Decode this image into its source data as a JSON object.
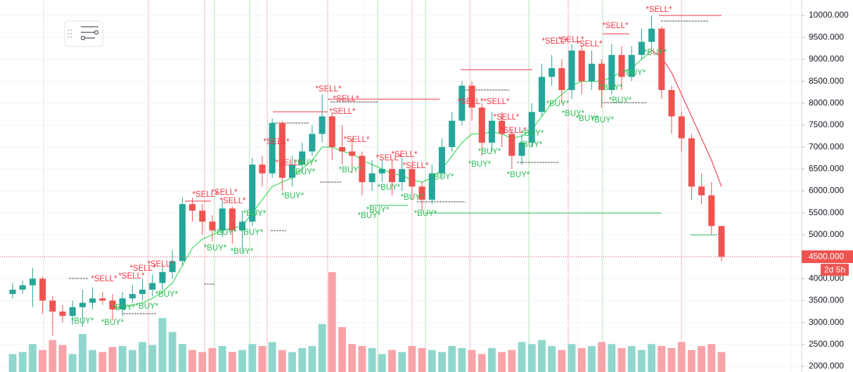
{
  "chart_data": {
    "type": "candlestick",
    "open": [
      3650,
      3750,
      3850,
      4000,
      3500,
      3250,
      3150,
      3350,
      3450,
      3550,
      3500,
      3300,
      3550,
      3650,
      3750,
      3900,
      4150,
      4400,
      5700,
      5550,
      5300,
      5100,
      5600,
      5100,
      5300,
      6600,
      6400,
      7550,
      6300,
      6600,
      6900,
      7300,
      7700,
      7000,
      6900,
      6800,
      6200,
      6400,
      6500,
      6200,
      6500,
      6100,
      5800,
      6400,
      7000,
      7600,
      8400,
      7900,
      7100,
      7600,
      7300,
      6800,
      7100,
      7800,
      8600,
      8800,
      8300,
      9200,
      8500,
      8900,
      8300,
      9100,
      8600,
      9100,
      9400,
      9700,
      8300,
      7700,
      7200,
      6100,
      5900,
      5200
    ],
    "high": [
      3900,
      3950,
      4250,
      4050,
      3600,
      3400,
      3500,
      3750,
      3800,
      3700,
      3650,
      3700,
      3850,
      4000,
      4100,
      4300,
      4650,
      5850,
      5850,
      5700,
      5450,
      5800,
      5650,
      5550,
      6750,
      6800,
      7650,
      7600,
      6800,
      7100,
      7500,
      8200,
      7800,
      7500,
      7200,
      6900,
      6700,
      6700,
      6700,
      6750,
      6600,
      6200,
      6600,
      7200,
      7800,
      8500,
      8500,
      8000,
      7800,
      7800,
      7400,
      7300,
      8000,
      8900,
      9100,
      9000,
      9350,
      9300,
      9200,
      9000,
      9350,
      9300,
      9300,
      9700,
      10000,
      9750,
      8400,
      7800,
      7300,
      6400,
      6200,
      5200
    ],
    "low": [
      3550,
      3650,
      3350,
      3200,
      2700,
      3000,
      2950,
      2900,
      3300,
      3400,
      3050,
      3150,
      3450,
      3500,
      3600,
      3750,
      4000,
      4300,
      5300,
      5000,
      4850,
      4950,
      4800,
      4600,
      5200,
      6100,
      6300,
      6000,
      6100,
      6400,
      6800,
      7100,
      6700,
      6600,
      6400,
      5900,
      6000,
      6200,
      5900,
      6000,
      5800,
      5550,
      5700,
      6300,
      6900,
      7500,
      7600,
      6800,
      6900,
      7000,
      6500,
      6600,
      7000,
      7700,
      8400,
      8000,
      8100,
      8200,
      8300,
      7900,
      8200,
      8300,
      8500,
      9000,
      9200,
      8100,
      7300,
      6900,
      5800,
      5700,
      5000,
      4400
    ],
    "close": [
      3750,
      3850,
      4000,
      3500,
      3250,
      3150,
      3350,
      3450,
      3550,
      3500,
      3300,
      3550,
      3650,
      3750,
      3900,
      4150,
      4400,
      5700,
      5550,
      5300,
      5100,
      5600,
      5100,
      5300,
      6600,
      6400,
      7550,
      6300,
      6600,
      6900,
      7300,
      7700,
      7000,
      6900,
      6800,
      6200,
      6400,
      6500,
      6200,
      6500,
      6100,
      5800,
      6400,
      7000,
      7600,
      8400,
      7900,
      7100,
      7600,
      7300,
      6800,
      7100,
      7800,
      8600,
      8800,
      8300,
      9200,
      8500,
      8900,
      8300,
      9100,
      8600,
      9100,
      9400,
      9700,
      8300,
      7700,
      7200,
      6100,
      5900,
      5200,
      4500
    ],
    "volume": [
      18,
      20,
      28,
      22,
      32,
      27,
      18,
      38,
      22,
      20,
      25,
      26,
      22,
      30,
      27,
      54,
      40,
      28,
      22,
      20,
      24,
      26,
      20,
      22,
      28,
      26,
      30,
      22,
      20,
      24,
      26,
      48,
      100,
      45,
      28,
      26,
      24,
      18,
      22,
      20,
      26,
      24,
      22,
      20,
      26,
      24,
      22,
      18,
      24,
      20,
      22,
      30,
      28,
      32,
      26,
      22,
      28,
      24,
      26,
      30,
      28,
      24,
      26,
      22,
      28,
      26,
      24,
      30,
      22,
      26,
      28,
      20
    ],
    "volume_ylim": [
      0,
      100
    ],
    "up_color": "#26a69a",
    "down_color": "#ef5350",
    "volume_up_color": "#8fd6cc",
    "volume_down_color": "#f7a3a8",
    "ma": [
      {
        "color": "#3ddc5c",
        "values": [
          null,
          null,
          null,
          null,
          null,
          null,
          null,
          null,
          null,
          null,
          3300,
          3350,
          3400,
          3450,
          3550,
          3700,
          3900,
          4300,
          4700,
          4900,
          5000,
          5100,
          5150,
          5200,
          5500,
          5800,
          6100,
          6200,
          6300,
          6500,
          6700,
          7000,
          7000,
          6900,
          6850,
          6700,
          6600,
          6500,
          6400,
          6350,
          6250,
          6200,
          6300,
          6500,
          6800,
          7100,
          7300,
          7300,
          7350,
          7300,
          7200,
          7250,
          7400,
          7700,
          8000,
          8200,
          8400,
          8500,
          8500,
          8500,
          8600,
          8700,
          8800,
          9000,
          9200,
          null,
          null,
          null,
          null,
          null,
          null,
          null
        ]
      },
      {
        "color": "#f0475a",
        "values": [
          null,
          null,
          null,
          null,
          null,
          null,
          null,
          null,
          null,
          null,
          null,
          null,
          null,
          null,
          null,
          null,
          null,
          null,
          null,
          null,
          null,
          null,
          null,
          null,
          null,
          null,
          null,
          null,
          null,
          null,
          null,
          null,
          null,
          null,
          null,
          null,
          null,
          null,
          null,
          null,
          null,
          null,
          null,
          null,
          null,
          null,
          null,
          null,
          null,
          null,
          null,
          null,
          null,
          null,
          null,
          null,
          null,
          null,
          null,
          null,
          null,
          null,
          null,
          null,
          9200,
          9050,
          8700,
          8200,
          7700,
          7200,
          6700,
          6100
        ]
      }
    ],
    "sell_labels": [
      "*SELL*",
      "*SELL*",
      "*SELL*",
      "*SELL*",
      "*SELL*",
      "*SELL*",
      "*SELL*",
      "*SELL*",
      "*SELL*",
      "*SELL*",
      "*SELL*",
      "*SELL*",
      "*SELL*",
      "*SELL*",
      "*SELL*",
      "*SELL*",
      "*SELL*",
      "*SELL*",
      "*SELL*",
      "*SELL*",
      "*SELL*",
      "*SELL*",
      "*SELL*",
      "*SELL*",
      "*SELL*"
    ],
    "buy_labels": [
      "*BUY*",
      "*BUY*",
      "*BUY*",
      "*BUY*",
      "*BUY*",
      "*BUY*",
      "*BUY*",
      "*BUY*",
      "*BUY*",
      "*BUY*",
      "*BUY*",
      "*BUY*",
      "*BUY*",
      "*BUY*",
      "*BUY*",
      "*BUY*",
      "*BUY*",
      "*BUY*",
      "*BUY*",
      "*BUY*",
      "*BUY*",
      "*BUY*",
      "*BUY*",
      "*BUY*",
      "*BUY*",
      "*BUY*",
      "*BUY*",
      "*BUY*",
      "*BUY*",
      "*BUY*",
      "*BUY*",
      "*BUY*",
      "*BUY*"
    ],
    "sell_color": "#f23645",
    "buy_color": "#2dbd55",
    "ylim": [
      1872,
      10353
    ],
    "yticks": [
      {
        "value": 2000,
        "label": "2000.000"
      },
      {
        "value": 2500,
        "label": "2500.000"
      },
      {
        "value": 3000,
        "label": "3000.000"
      },
      {
        "value": 3500,
        "label": "3500.000"
      },
      {
        "value": 4000,
        "label": "4000.000"
      },
      {
        "value": 4500,
        "label": "4500.000"
      },
      {
        "value": 5000,
        "label": "5000.000"
      },
      {
        "value": 5500,
        "label": "5500.000"
      },
      {
        "value": 6000,
        "label": "6000.000"
      },
      {
        "value": 6500,
        "label": "6500.000"
      },
      {
        "value": 7000,
        "label": "7000.000"
      },
      {
        "value": 7500,
        "label": "7500.000"
      },
      {
        "value": 8000,
        "label": "8000.000"
      },
      {
        "value": 8500,
        "label": "8500.000"
      },
      {
        "value": 9000,
        "label": "9000.000"
      },
      {
        "value": 9500,
        "label": "9500.000"
      },
      {
        "value": 10000,
        "label": "10000.000"
      }
    ],
    "last_price": {
      "value": 4500,
      "label": "4500.000"
    },
    "countdown": "2d 5h",
    "grid": true
  }
}
